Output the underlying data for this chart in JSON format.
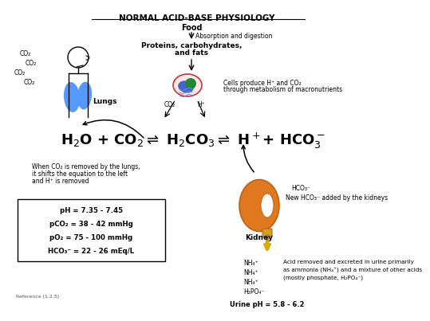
{
  "title": "NORMAL ACID-BASE PHYSIOLOGY",
  "background_color": "#ffffff",
  "lung_color": "#5599ff",
  "kidney_color": "#e07820",
  "reference_text": "Reference (1,2,5)",
  "urine_ph_text": "Urine pH = 5.8 - 6.2",
  "box_lines": [
    "pH = 7.35 - 7.45",
    "pCO₂ = 38 - 42 mmHg",
    "pO₂ = 75 - 100 mmHg",
    "HCO₃⁻ = 22 - 26 mEq/L"
  ],
  "food_text": "Food",
  "absorption_text": "Absorption and digestion",
  "proteins_text1": "Proteins, carbohydrates,",
  "proteins_text2": "and fats",
  "cells_text1": "Cells produce H⁺ and CO₂",
  "cells_text2": "through metabolism of macronutrients",
  "lungs_label": "Lungs",
  "kidney_label": "Kidney",
  "when_co2_text1": "When CO₂ is removed by the lungs,",
  "when_co2_text2": "it shifts the equation to the left",
  "when_co2_text3": "and H⁺ is removed",
  "hco3_kidney": "HCO₃⁻",
  "new_hco3_text": "New HCO₃⁻ added by the kidneys",
  "acid_text1": "Acid removed and excreted in urine primarily",
  "acid_text2": "as ammonia (NH₄⁺) and a mixture of other acids",
  "acid_text3": "(mostly phosphate, H₂PO₄⁻)"
}
